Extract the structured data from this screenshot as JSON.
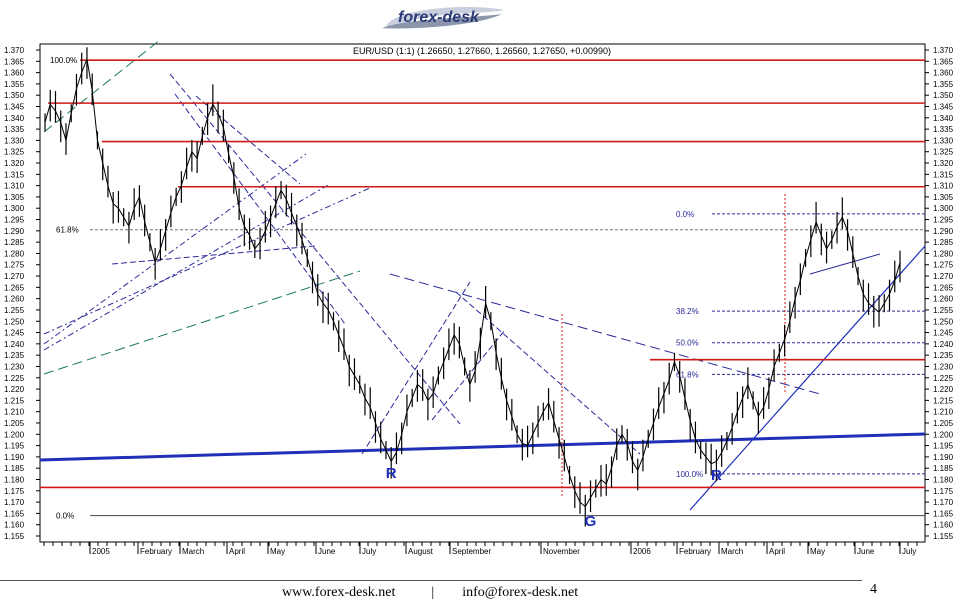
{
  "brand": {
    "logo_text": "forex-desk"
  },
  "footer": {
    "website": "www.forex-desk.net",
    "separator": "|",
    "email": "info@forex-desk.net",
    "page_number": "4"
  },
  "chart_data": {
    "type": "line",
    "title": "EUR/USD (1:1) (1.26650, 1.27660, 1.26560, 1.27650, +0.00990)",
    "ylim": [
      1.155,
      1.37
    ],
    "y_ticks": [
      "1.370",
      "1.365",
      "1.360",
      "1.355",
      "1.350",
      "1.345",
      "1.340",
      "1.335",
      "1.330",
      "1.325",
      "1.320",
      "1.315",
      "1.310",
      "1.305",
      "1.300",
      "1.295",
      "1.290",
      "1.285",
      "1.280",
      "1.275",
      "1.270",
      "1.265",
      "1.260",
      "1.255",
      "1.250",
      "1.245",
      "1.240",
      "1.235",
      "1.230",
      "1.225",
      "1.220",
      "1.215",
      "1.210",
      "1.205",
      "1.200",
      "1.195",
      "1.190",
      "1.185",
      "1.180",
      "1.175",
      "1.170",
      "1.165",
      "1.160",
      "1.155"
    ],
    "x_labels": [
      "2005",
      "February",
      "March",
      "April",
      "May",
      "June",
      "July",
      "August",
      "September",
      "November",
      "2006",
      "February",
      "March",
      "April",
      "May",
      "June",
      "July"
    ],
    "grid": false,
    "series": [
      {
        "values": [
          1.338,
          1.346,
          1.343,
          1.338,
          1.33,
          1.342,
          1.353,
          1.36,
          1.366,
          1.352,
          1.33,
          1.32,
          1.31,
          1.302,
          1.3,
          1.296,
          1.292,
          1.3,
          1.305,
          1.294,
          1.285,
          1.276,
          1.282,
          1.29,
          1.298,
          1.305,
          1.31,
          1.318,
          1.325,
          1.322,
          1.332,
          1.34,
          1.346,
          1.342,
          1.336,
          1.324,
          1.314,
          1.3,
          1.292,
          1.288,
          1.282,
          1.285,
          1.29,
          1.296,
          1.302,
          1.308,
          1.304,
          1.298,
          1.292,
          1.286,
          1.278,
          1.27,
          1.262,
          1.258,
          1.255,
          1.25,
          1.244,
          1.238,
          1.23,
          1.226,
          1.222,
          1.216,
          1.212,
          1.205,
          1.198,
          1.193,
          1.188,
          1.192,
          1.2,
          1.21,
          1.216,
          1.222,
          1.22,
          1.215,
          1.218,
          1.226,
          1.232,
          1.238,
          1.244,
          1.24,
          1.23,
          1.222,
          1.228,
          1.242,
          1.258,
          1.25,
          1.236,
          1.225,
          1.215,
          1.208,
          1.2,
          1.196,
          1.195,
          1.2,
          1.205,
          1.21,
          1.214,
          1.206,
          1.198,
          1.19,
          1.182,
          1.175,
          1.17,
          1.168,
          1.172,
          1.176,
          1.18,
          1.178,
          1.185,
          1.195,
          1.2,
          1.196,
          1.188,
          1.184,
          1.19,
          1.198,
          1.205,
          1.212,
          1.218,
          1.224,
          1.232,
          1.226,
          1.216,
          1.206,
          1.198,
          1.193,
          1.19,
          1.187,
          1.188,
          1.192,
          1.197,
          1.203,
          1.21,
          1.216,
          1.222,
          1.215,
          1.208,
          1.212,
          1.22,
          1.23,
          1.236,
          1.242,
          1.25,
          1.26,
          1.268,
          1.278,
          1.286,
          1.294,
          1.288,
          1.282,
          1.286,
          1.292,
          1.296,
          1.29,
          1.28,
          1.27,
          1.262,
          1.258,
          1.256,
          1.254,
          1.258,
          1.262,
          1.268,
          1.276
        ]
      }
    ],
    "horizontal_lines": [
      {
        "value": 1.3655,
        "label": "100.0%"
      },
      {
        "value": 1.3465
      },
      {
        "value": 1.3295
      },
      {
        "value": 1.3095
      },
      {
        "value": 1.233
      },
      {
        "value": 1.1765
      }
    ],
    "fibonacci_left": [
      {
        "value": 1.2905,
        "label": "61.8%"
      },
      {
        "value": 1.164,
        "label": "0.0%"
      }
    ],
    "fibonacci_right": [
      {
        "value": 1.2975,
        "label": "0.0%"
      },
      {
        "value": 1.2545,
        "label": "38.2%"
      },
      {
        "value": 1.2405,
        "label": "50.0%"
      },
      {
        "value": 1.2265,
        "label": "61.8%"
      },
      {
        "value": 1.1825,
        "label": "100.0%"
      }
    ],
    "annotations": [
      {
        "text": "R",
        "x_index": 66
      },
      {
        "text": "G",
        "x_index": 104
      },
      {
        "text": "R",
        "x_index": 128
      }
    ]
  }
}
